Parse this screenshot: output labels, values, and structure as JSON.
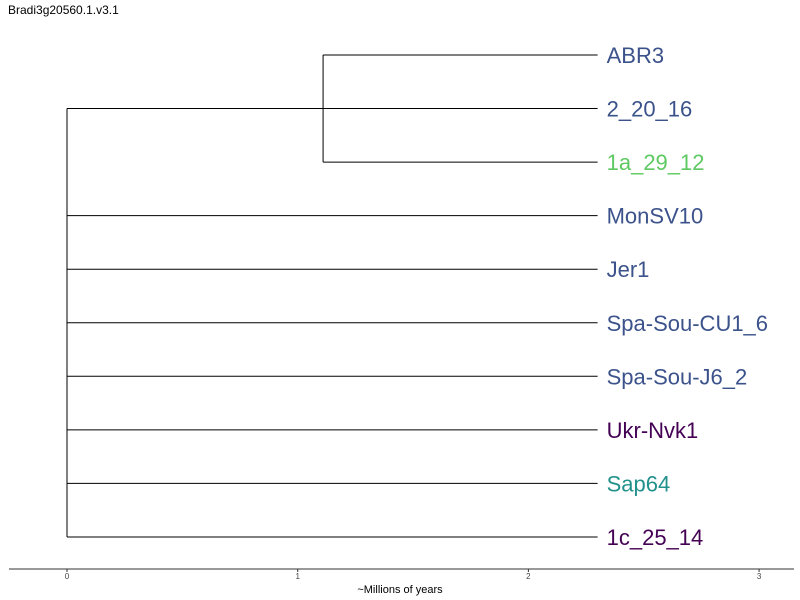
{
  "title": "Bradi3g20560.1.v3.1",
  "axis": {
    "label": "~Millions of years",
    "ticks": [
      "0",
      "1",
      "2",
      "3"
    ],
    "range": [
      -0.25,
      3.15
    ]
  },
  "tree": {
    "branch_color": "#000000",
    "tip_depth": 2.3,
    "clade_node_depth": 1.11,
    "tips": [
      {
        "label": "ABR3",
        "color": "#3b528b",
        "parent": "clade"
      },
      {
        "label": "2_20_16",
        "color": "#3b528b",
        "parent": "root"
      },
      {
        "label": "1a_29_12",
        "color": "#5ec962",
        "parent": "clade"
      },
      {
        "label": "MonSV10",
        "color": "#3b528b",
        "parent": "root"
      },
      {
        "label": "Jer1",
        "color": "#3b528b",
        "parent": "root"
      },
      {
        "label": "Spa-Sou-CU1_6",
        "color": "#3b528b",
        "parent": "root"
      },
      {
        "label": "Spa-Sou-J6_2",
        "color": "#3b528b",
        "parent": "root"
      },
      {
        "label": "Ukr-Nvk1",
        "color": "#440154",
        "parent": "root"
      },
      {
        "label": "Sap64",
        "color": "#21918c",
        "parent": "root"
      },
      {
        "label": "1c_25_14",
        "color": "#440154",
        "parent": "root"
      }
    ]
  }
}
